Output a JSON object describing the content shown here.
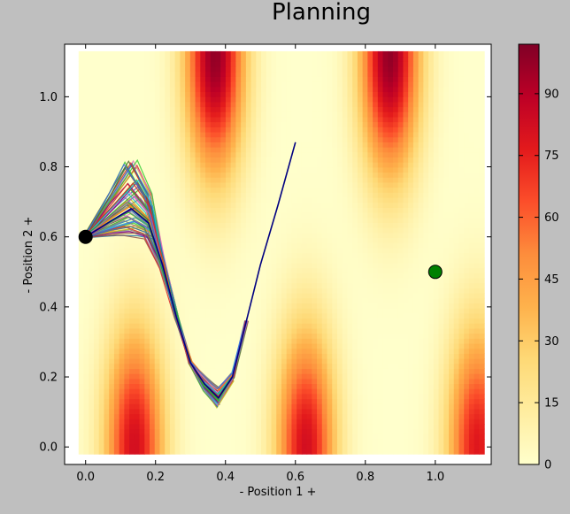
{
  "chart_data": {
    "type": "heatmap",
    "title": "Planning",
    "xlabel": "- Position 1 +",
    "ylabel": "- Position 2 +",
    "xlim": [
      -0.06,
      1.16
    ],
    "ylim": [
      -0.05,
      1.15
    ],
    "xticks": [
      "0.0",
      "0.2",
      "0.4",
      "0.6",
      "0.8",
      "1.0"
    ],
    "yticks": [
      "0.0",
      "0.2",
      "0.4",
      "0.6",
      "0.8",
      "1.0"
    ],
    "field_extent": {
      "x": [
        -0.02,
        1.14
      ],
      "y": [
        -0.02,
        1.13
      ]
    },
    "peaks": [
      {
        "x": 0.37,
        "y": 1.12,
        "value": 98
      },
      {
        "x": 0.87,
        "y": 1.12,
        "value": 98
      },
      {
        "x": 0.14,
        "y": 0.0,
        "value": 82
      },
      {
        "x": 0.63,
        "y": 0.0,
        "value": 82
      },
      {
        "x": 1.12,
        "y": 0.0,
        "value": 78
      }
    ],
    "colorbar": {
      "min": 0,
      "max": 102,
      "ticks": [
        "0",
        "15",
        "30",
        "45",
        "60",
        "75",
        "90"
      ],
      "colormap": "YlOrRd"
    },
    "start": {
      "x": 0.0,
      "y": 0.6,
      "color": "#000000"
    },
    "goal": {
      "x": 1.0,
      "y": 0.5,
      "color": "#008000"
    },
    "best_path": {
      "color": "#000080",
      "points": [
        [
          0.0,
          0.6
        ],
        [
          0.08,
          0.65
        ],
        [
          0.13,
          0.68
        ],
        [
          0.18,
          0.64
        ],
        [
          0.22,
          0.52
        ],
        [
          0.26,
          0.37
        ],
        [
          0.3,
          0.24
        ],
        [
          0.34,
          0.18
        ],
        [
          0.38,
          0.14
        ],
        [
          0.42,
          0.2
        ],
        [
          0.46,
          0.36
        ],
        [
          0.5,
          0.52
        ],
        [
          0.55,
          0.69
        ],
        [
          0.6,
          0.87
        ]
      ]
    },
    "candidate_paths": {
      "count": 60,
      "colors": [
        "#1f77b4",
        "#2ca02c",
        "#d62728",
        "#9467bd",
        "#8c564b",
        "#e377c2",
        "#7f7f7f",
        "#bcbd22",
        "#17becf",
        "#800080",
        "#ff7f0e",
        "#556b2f",
        "#4169e1",
        "#32cd32"
      ]
    }
  }
}
